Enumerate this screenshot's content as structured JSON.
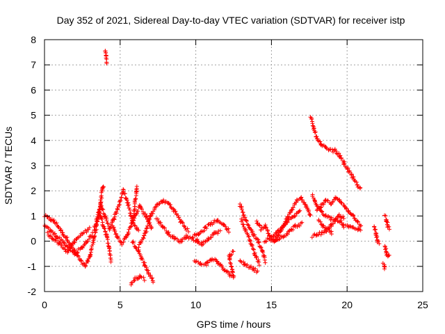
{
  "chart_data": {
    "type": "scatter",
    "title": "Day 352 of 2021, Sidereal Day-to-day VTEC variation (SDTVAR) for receiver istp",
    "xlabel": "GPS time / hours",
    "ylabel": "SDTVAR / TECUs",
    "xlim": [
      0,
      25
    ],
    "ylim": [
      -2,
      8
    ],
    "x_ticks": [
      "0",
      "5",
      "10",
      "15",
      "20",
      "25"
    ],
    "y_ticks": [
      "-2",
      "-1",
      "0",
      "1",
      "2",
      "3",
      "4",
      "5",
      "6",
      "7",
      "8"
    ],
    "grid": true,
    "marker": "+",
    "series": [
      {
        "name": "SDTVAR",
        "color": "#ff0000",
        "segments": [
          [
            [
              0,
              1.0
            ],
            [
              0.3,
              0.9
            ],
            [
              0.6,
              0.8
            ],
            [
              0.9,
              0.6
            ],
            [
              1.2,
              0.3
            ],
            [
              1.5,
              0.1
            ],
            [
              1.8,
              -0.2
            ],
            [
              2.1,
              -0.5
            ],
            [
              2.4,
              -0.8
            ],
            [
              2.7,
              -1.0
            ],
            [
              3.0,
              -0.6
            ],
            [
              3.3,
              0.2
            ],
            [
              3.6,
              1.0
            ],
            [
              3.8,
              2.0
            ],
            [
              3.9,
              2.2
            ]
          ],
          [
            [
              0,
              0.6
            ],
            [
              0.4,
              0.4
            ],
            [
              0.8,
              0.2
            ],
            [
              1.2,
              0.0
            ],
            [
              1.6,
              -0.3
            ],
            [
              2.0,
              -0.5
            ],
            [
              2.4,
              -0.3
            ],
            [
              2.8,
              0.0
            ],
            [
              3.2,
              0.3
            ]
          ],
          [
            [
              0.2,
              0.3
            ],
            [
              0.6,
              0.1
            ],
            [
              1.0,
              -0.1
            ],
            [
              1.5,
              -0.4
            ],
            [
              2.0,
              0.0
            ],
            [
              2.5,
              0.3
            ],
            [
              3.0,
              0.5
            ]
          ],
          [
            [
              3.3,
              0.5
            ],
            [
              3.7,
              1.5
            ],
            [
              4.0,
              1.0
            ],
            [
              4.3,
              0.5
            ],
            [
              4.6,
              0.9
            ],
            [
              5.0,
              1.6
            ],
            [
              5.2,
              2.0
            ],
            [
              5.5,
              1.5
            ],
            [
              5.8,
              0.8
            ],
            [
              6.2,
              0.4
            ]
          ],
          [
            [
              3.6,
              1.2
            ],
            [
              3.9,
              0.6
            ],
            [
              4.1,
              0.2
            ],
            [
              4.3,
              -0.3
            ],
            [
              4.4,
              -0.8
            ]
          ],
          [
            [
              4.5,
              0.6
            ],
            [
              4.8,
              0.2
            ],
            [
              5.1,
              -0.1
            ],
            [
              5.5,
              0.3
            ],
            [
              5.9,
              0.9
            ],
            [
              6.3,
              1.4
            ],
            [
              6.7,
              1.0
            ],
            [
              7.1,
              0.5
            ]
          ],
          [
            [
              5.9,
              0.9
            ],
            [
              6.0,
              1.6
            ],
            [
              6.1,
              2.2
            ]
          ],
          [
            [
              6.2,
              -0.2
            ],
            [
              6.6,
              0.2
            ],
            [
              7.0,
              1.0
            ],
            [
              7.4,
              1.4
            ],
            [
              7.8,
              1.6
            ],
            [
              8.2,
              1.5
            ],
            [
              8.6,
              1.2
            ],
            [
              9.0,
              0.8
            ],
            [
              9.5,
              0.4
            ]
          ],
          [
            [
              5.8,
              0.0
            ],
            [
              6.2,
              -0.4
            ],
            [
              6.6,
              -0.9
            ],
            [
              6.9,
              -1.3
            ],
            [
              7.2,
              -1.6
            ]
          ],
          [
            [
              5.7,
              -1.7
            ],
            [
              6.0,
              -1.5
            ],
            [
              6.3,
              -1.4
            ],
            [
              6.6,
              -1.5
            ]
          ],
          [
            [
              7.4,
              0.9
            ],
            [
              7.8,
              0.6
            ],
            [
              8.2,
              0.3
            ],
            [
              8.6,
              0.1
            ],
            [
              9.0,
              0.0
            ],
            [
              9.4,
              0.2
            ],
            [
              9.8,
              0.1
            ],
            [
              10.2,
              0.0
            ]
          ],
          [
            [
              9.8,
              0.2
            ],
            [
              10.2,
              0.3
            ],
            [
              10.6,
              0.5
            ],
            [
              11.0,
              0.7
            ],
            [
              11.4,
              0.8
            ],
            [
              11.8,
              0.7
            ],
            [
              12.2,
              0.4
            ]
          ],
          [
            [
              10.0,
              0.0
            ],
            [
              10.4,
              -0.1
            ],
            [
              10.8,
              0.1
            ],
            [
              11.2,
              0.3
            ],
            [
              11.6,
              0.4
            ]
          ],
          [
            [
              9.9,
              -0.8
            ],
            [
              10.3,
              -0.9
            ],
            [
              10.7,
              -0.9
            ],
            [
              11.1,
              -0.7
            ],
            [
              11.4,
              -0.8
            ],
            [
              11.8,
              -1.1
            ],
            [
              12.2,
              -1.3
            ],
            [
              12.5,
              -1.4
            ],
            [
              12.2,
              -0.6
            ],
            [
              12.5,
              -0.4
            ]
          ],
          [
            [
              12.9,
              1.5
            ],
            [
              13.2,
              1.0
            ],
            [
              13.5,
              0.6
            ],
            [
              13.8,
              0.3
            ],
            [
              14.1,
              0.0
            ],
            [
              14.4,
              -0.4
            ],
            [
              14.6,
              -0.8
            ]
          ],
          [
            [
              12.9,
              -0.8
            ],
            [
              13.2,
              -0.9
            ],
            [
              13.5,
              -1.0
            ],
            [
              13.8,
              -1.1
            ],
            [
              14.1,
              -1.2
            ]
          ],
          [
            [
              13.0,
              0.9
            ],
            [
              13.3,
              0.4
            ],
            [
              13.6,
              0.0
            ],
            [
              13.9,
              -0.5
            ],
            [
              14.2,
              -0.9
            ]
          ],
          [
            [
              14.0,
              0.8
            ],
            [
              14.3,
              0.5
            ],
            [
              14.6,
              0.6
            ],
            [
              14.9,
              0.2
            ],
            [
              15.2,
              0.0
            ],
            [
              15.5,
              0.3
            ],
            [
              15.8,
              0.6
            ],
            [
              16.1,
              1.0
            ],
            [
              16.4,
              1.3
            ],
            [
              16.7,
              1.6
            ],
            [
              17.0,
              1.7
            ],
            [
              17.3,
              1.4
            ],
            [
              17.6,
              1.0
            ]
          ],
          [
            [
              14.5,
              0.0
            ],
            [
              14.9,
              0.1
            ],
            [
              15.3,
              0.3
            ],
            [
              15.7,
              0.5
            ],
            [
              16.1,
              0.8
            ],
            [
              16.5,
              1.0
            ],
            [
              16.9,
              1.2
            ]
          ],
          [
            [
              15.0,
              0.0
            ],
            [
              15.4,
              0.1
            ],
            [
              15.8,
              0.2
            ],
            [
              16.2,
              0.4
            ],
            [
              16.6,
              0.6
            ],
            [
              17.0,
              0.7
            ]
          ],
          [
            [
              17.6,
              4.9
            ],
            [
              17.8,
              4.5
            ],
            [
              18.0,
              4.1
            ],
            [
              18.3,
              3.8
            ],
            [
              18.6,
              3.7
            ],
            [
              18.9,
              3.6
            ],
            [
              19.2,
              3.6
            ],
            [
              19.5,
              3.4
            ],
            [
              19.8,
              3.1
            ],
            [
              20.1,
              2.8
            ],
            [
              20.4,
              2.5
            ],
            [
              20.7,
              2.2
            ],
            [
              20.9,
              2.1
            ]
          ],
          [
            [
              17.7,
              1.8
            ],
            [
              18.0,
              1.4
            ],
            [
              18.3,
              1.2
            ],
            [
              18.6,
              1.0
            ],
            [
              18.9,
              0.9
            ],
            [
              19.2,
              0.9
            ],
            [
              19.5,
              0.8
            ],
            [
              19.8,
              0.6
            ],
            [
              20.1,
              0.6
            ],
            [
              20.4,
              0.5
            ],
            [
              20.7,
              0.5
            ],
            [
              20.9,
              0.4
            ]
          ],
          [
            [
              17.7,
              0.2
            ],
            [
              18.0,
              0.3
            ],
            [
              18.3,
              0.3
            ],
            [
              18.6,
              0.4
            ],
            [
              18.9,
              0.6
            ],
            [
              19.2,
              0.8
            ],
            [
              19.5,
              1.0
            ],
            [
              19.8,
              0.9
            ]
          ],
          [
            [
              18.0,
              1.2
            ],
            [
              18.3,
              1.4
            ],
            [
              18.6,
              1.6
            ],
            [
              18.9,
              1.5
            ],
            [
              19.2,
              1.7
            ],
            [
              19.5,
              1.6
            ],
            [
              19.8,
              1.4
            ],
            [
              20.1,
              1.2
            ],
            [
              20.4,
              1.0
            ],
            [
              20.7,
              0.8
            ],
            [
              20.9,
              0.6
            ]
          ],
          [
            [
              18.1,
              0.8
            ],
            [
              18.4,
              0.6
            ],
            [
              18.7,
              0.5
            ],
            [
              19.0,
              0.3
            ]
          ],
          [
            [
              21.8,
              0.6
            ],
            [
              21.9,
              0.3
            ],
            [
              22.0,
              0.0
            ],
            [
              22.1,
              -0.1
            ]
          ],
          [
            [
              22.5,
              1.0
            ],
            [
              22.6,
              0.8
            ],
            [
              22.7,
              0.6
            ],
            [
              22.8,
              0.5
            ]
          ],
          [
            [
              22.5,
              -0.2
            ],
            [
              22.6,
              -0.5
            ],
            [
              22.7,
              -0.6
            ],
            [
              22.8,
              -0.6
            ]
          ],
          [
            [
              22.4,
              -0.9
            ],
            [
              22.45,
              -1.0
            ],
            [
              22.5,
              -1.1
            ]
          ],
          [
            [
              4.0,
              7.6
            ],
            [
              4.05,
              7.4
            ],
            [
              4.1,
              7.1
            ]
          ]
        ]
      }
    ]
  }
}
